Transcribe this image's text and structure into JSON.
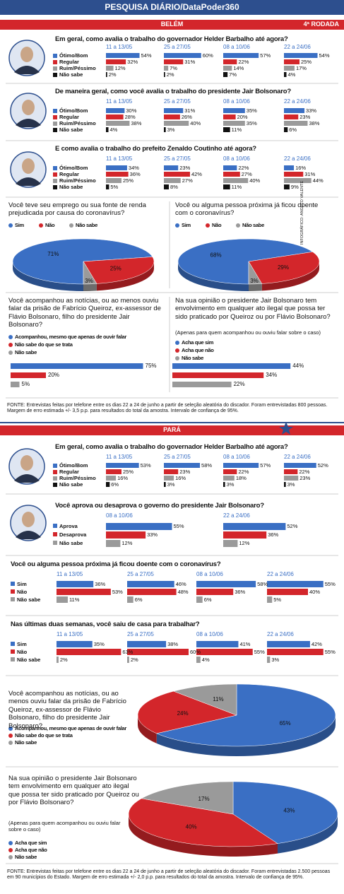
{
  "header": {
    "title": "PESQUISA DIÁRIO/DataPoder360"
  },
  "sections": [
    {
      "name": "BELÉM",
      "round": "4ª RODADA"
    },
    {
      "name": "PARÁ"
    }
  ],
  "credit": "INFOGRÁFICO: ANGELO VALENTE",
  "footnotes": [
    "FONTE: Entrevistas feitas por telefone entre os dias 22 a 24 de junho a partir de seleção aleatória do discador. Foram entrevistadas 800 pessoas. Margem de erro estimada +/- 3,5 p.p. para resultados do total da amostra. Intervalo de confiança de 95%.",
    "FONTE: Entrevistas feitas por telefone entre os dias 22 a 24 de junho a partir de seleção aleatória do discador. Foram entrevistadas 2.500 pessoas em 90 municípios do Estado. Margem de erro estimada +/- 2,0 p.p. para resultados do total da amostra. Intervalo de confiança de 95%."
  ],
  "chart_data": [
    {
      "type": "grouped-bar",
      "title": "Em geral, como avalia o trabalho do governador Helder Barbalho até agora?",
      "categories": [
        "11 a 13/05",
        "25 a 27/05",
        "08 a 10/06",
        "22 a 24/06"
      ],
      "series": [
        {
          "name": "Ótimo/Bom",
          "color": "#3a6fc4",
          "values": [
            54,
            60,
            57,
            54
          ],
          "value_labels": [
            "54%",
            "60%",
            "57%",
            "54%"
          ]
        },
        {
          "name": "Regular",
          "color": "#d3262b",
          "values": [
            32,
            31,
            22,
            25
          ],
          "value_labels": [
            "32%",
            "31%",
            "22%",
            "25%"
          ]
        },
        {
          "name": "Ruim/Péssimo",
          "color": "#9a9a9a",
          "values": [
            12,
            7,
            14,
            17
          ],
          "value_labels": [
            "12%",
            "7%",
            "14%",
            "17%"
          ]
        },
        {
          "name": "Não sabe",
          "color": "#111111",
          "values": [
            2,
            2,
            7,
            4
          ],
          "value_labels": [
            "2%",
            "2%",
            "7%",
            "4%"
          ]
        }
      ]
    },
    {
      "type": "grouped-bar",
      "title": "De maneira geral, como você avalia o trabalho do presidente Jair Bolsonaro?",
      "categories": [
        "11 a 13/05",
        "25 a 27/05",
        "08 a 10/06",
        "22 a 24/06"
      ],
      "series": [
        {
          "name": "Ótimo/Bom",
          "color": "#3a6fc4",
          "values": [
            30,
            31,
            35,
            33
          ],
          "value_labels": [
            "30%",
            "31%",
            "35%",
            "33%"
          ]
        },
        {
          "name": "Regular",
          "color": "#d3262b",
          "values": [
            28,
            26,
            20,
            23
          ],
          "value_labels": [
            "28%",
            "26%",
            "20%",
            "23%"
          ]
        },
        {
          "name": "Ruim/Péssimo",
          "color": "#9a9a9a",
          "values": [
            38,
            40,
            35,
            38
          ],
          "value_labels": [
            "38%",
            "40%",
            "35%",
            "38%"
          ]
        },
        {
          "name": "Não sabe",
          "color": "#111111",
          "values": [
            4,
            3,
            11,
            6
          ],
          "value_labels": [
            "4%",
            "3%",
            "11%",
            "6%"
          ]
        }
      ]
    },
    {
      "type": "grouped-bar",
      "title": "E como avalia o trabalho do prefeito Zenaldo Coutinho até agora?",
      "categories": [
        "11 a 13/05",
        "25 a 27/05",
        "08 a 10/06",
        "22 a 24/06"
      ],
      "series": [
        {
          "name": "Ótimo/Bom",
          "color": "#3a6fc4",
          "values": [
            34,
            23,
            22,
            16
          ],
          "value_labels": [
            "34%",
            "23%",
            "22%",
            "16%"
          ]
        },
        {
          "name": "Regular",
          "color": "#d3262b",
          "values": [
            36,
            42,
            27,
            31
          ],
          "value_labels": [
            "36%",
            "42%",
            "27%",
            "31%"
          ]
        },
        {
          "name": "Ruim/Péssimo",
          "color": "#9a9a9a",
          "values": [
            25,
            27,
            40,
            44
          ],
          "value_labels": [
            "25%",
            "27%",
            "40%",
            "44%"
          ]
        },
        {
          "name": "Não sabe",
          "color": "#111111",
          "values": [
            5,
            8,
            11,
            9
          ],
          "value_labels": [
            "5%",
            "8%",
            "11%",
            "9%"
          ]
        }
      ]
    },
    {
      "type": "pie",
      "title": "Você teve seu emprego ou sua fonte de renda prejudicada por causa do coronavírus?",
      "categories": [
        "Sim",
        "Não",
        "Não sabe"
      ],
      "values": [
        71,
        25,
        3
      ],
      "value_labels": [
        "71%",
        "25%",
        "3%"
      ],
      "colors": [
        "#3a6fc4",
        "#d3262b",
        "#9a9a9a"
      ]
    },
    {
      "type": "pie",
      "title": "Você ou alguma pessoa próxima já ficou doente com o coronavírus?",
      "categories": [
        "Sim",
        "Não",
        "Não sabe"
      ],
      "values": [
        68,
        29,
        3
      ],
      "value_labels": [
        "68%",
        "29%",
        "3%"
      ],
      "colors": [
        "#3a6fc4",
        "#d3262b",
        "#9a9a9a"
      ]
    },
    {
      "type": "hbar",
      "title": "Você acompanhou as notícias, ou ao menos ouviu falar da prisão de Fabrício Queiroz, ex-assessor de Flávio Bolsonaro, filho do presidente Jair Bolsonaro?",
      "categories": [
        "Acompanhou, mesmo que apenas de ouvir falar",
        "Não sabe do que se trata",
        "Não sabe"
      ],
      "values": [
        75,
        20,
        5
      ],
      "value_labels": [
        "75%",
        "20%",
        "5%"
      ],
      "colors": [
        "#3a6fc4",
        "#d3262b",
        "#9a9a9a"
      ]
    },
    {
      "type": "hbar",
      "title": "Na sua opinião o presidente Jair Bolsonaro tem envolvimento em qualquer ato ilegal que possa ter sido praticado por Queiroz ou por Flávio Bolsonaro?",
      "note": "(Apenas para quem acompanhou ou ouviu falar sobre o caso)",
      "categories": [
        "Acha que sim",
        "Acha que não",
        "Não sabe"
      ],
      "values": [
        44,
        34,
        22
      ],
      "value_labels": [
        "44%",
        "34%",
        "22%"
      ],
      "colors": [
        "#3a6fc4",
        "#d3262b",
        "#9a9a9a"
      ]
    },
    {
      "type": "grouped-bar",
      "title": "Em geral, como avalia o trabalho do governador Helder Barbalho até agora?",
      "categories": [
        "11 a 13/05",
        "25 a 27/05",
        "08 a 10/06",
        "22 a 24/06"
      ],
      "series": [
        {
          "name": "Ótimo/Bom",
          "color": "#3a6fc4",
          "values": [
            53,
            58,
            57,
            52
          ],
          "value_labels": [
            "53%",
            "58%",
            "57%",
            "52%"
          ]
        },
        {
          "name": "Regular",
          "color": "#d3262b",
          "values": [
            25,
            23,
            22,
            22
          ],
          "value_labels": [
            "25%",
            "23%",
            "22%",
            "22%"
          ]
        },
        {
          "name": "Ruim/Péssimo",
          "color": "#9a9a9a",
          "values": [
            16,
            16,
            18,
            23
          ],
          "value_labels": [
            "16%",
            "16%",
            "18%",
            "23%"
          ]
        },
        {
          "name": "Não sabe",
          "color": "#111111",
          "values": [
            6,
            3,
            3,
            3
          ],
          "value_labels": [
            "6%",
            "3%",
            "3%",
            "3%"
          ]
        }
      ]
    },
    {
      "type": "grouped-bar",
      "title": "Você aprova ou desaprova o governo do presidente Jair Bolsonaro?",
      "categories": [
        "08 a 10/06",
        "22 a 24/06"
      ],
      "series": [
        {
          "name": "Aprova",
          "color": "#3a6fc4",
          "values": [
            55,
            52
          ],
          "value_labels": [
            "55%",
            "52%"
          ]
        },
        {
          "name": "Desaprova",
          "color": "#d3262b",
          "values": [
            33,
            36
          ],
          "value_labels": [
            "33%",
            "36%"
          ]
        },
        {
          "name": "Não sabe",
          "color": "#9a9a9a",
          "values": [
            12,
            12
          ],
          "value_labels": [
            "12%",
            "12%"
          ]
        }
      ]
    },
    {
      "type": "grouped-bar",
      "title": "Você ou alguma pessoa próxima já ficou doente com o coronavírus?",
      "categories": [
        "11 a 13/05",
        "25 a 27/05",
        "08 a 10/06",
        "22 a 24/06"
      ],
      "series": [
        {
          "name": "Sim",
          "color": "#3a6fc4",
          "values": [
            36,
            46,
            58,
            55
          ],
          "value_labels": [
            "36%",
            "46%",
            "58%",
            "55%"
          ]
        },
        {
          "name": "Não",
          "color": "#d3262b",
          "values": [
            53,
            48,
            36,
            40
          ],
          "value_labels": [
            "53%",
            "48%",
            "36%",
            "40%"
          ]
        },
        {
          "name": "Não sabe",
          "color": "#9a9a9a",
          "values": [
            11,
            6,
            6,
            5
          ],
          "value_labels": [
            "11%",
            "6%",
            "6%",
            "5%"
          ]
        }
      ]
    },
    {
      "type": "grouped-bar",
      "title": "Nas últimas duas semanas, você saiu de casa para trabalhar?",
      "categories": [
        "11 a 13/05",
        "25 a 27/05",
        "08 a 10/06",
        "22 a 24/06"
      ],
      "series": [
        {
          "name": "Sim",
          "color": "#3a6fc4",
          "values": [
            35,
            38,
            41,
            42
          ],
          "value_labels": [
            "35%",
            "38%",
            "41%",
            "42%"
          ]
        },
        {
          "name": "Não",
          "color": "#d3262b",
          "values": [
            63,
            60,
            55,
            55
          ],
          "value_labels": [
            "63%",
            "60%",
            "55%",
            "55%"
          ]
        },
        {
          "name": "Não sabe",
          "color": "#9a9a9a",
          "values": [
            2,
            2,
            4,
            3
          ],
          "value_labels": [
            "2%",
            "2%",
            "4%",
            "3%"
          ]
        }
      ]
    },
    {
      "type": "pie",
      "title": "Você acompanhou as notícias, ou ao menos ouviu falar da prisão de Fabrício Queiroz, ex-assessor de Flávio Bolsonaro, filho do presidente Jair Bolsonaro?",
      "categories": [
        "Acompanhou, mesmo que apenas de ouvir falar",
        "Não sabe do que se trata",
        "Não sabe"
      ],
      "values": [
        65,
        24,
        11
      ],
      "value_labels": [
        "65%",
        "24%",
        "11%"
      ],
      "colors": [
        "#3a6fc4",
        "#d3262b",
        "#9a9a9a"
      ]
    },
    {
      "type": "pie",
      "title": "Na sua opinião o presidente Jair Bolsonaro tem envolvimento em qualquer ato ilegal que possa ter sido praticado por Queiroz ou por Flávio Bolsonaro?",
      "note": "(Apenas para quem acompanhou ou ouviu falar sobre o caso)",
      "categories": [
        "Acha que sim",
        "Acha que não",
        "Não sabe"
      ],
      "values": [
        43,
        40,
        17
      ],
      "value_labels": [
        "43%",
        "40%",
        "17%"
      ],
      "colors": [
        "#3a6fc4",
        "#d3262b",
        "#9a9a9a"
      ]
    }
  ]
}
